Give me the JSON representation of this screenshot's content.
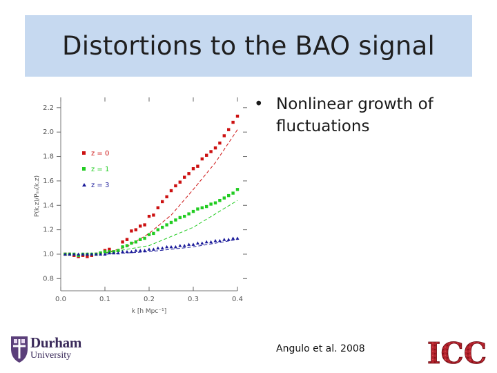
{
  "slide": {
    "title": "Distortions to the BAO signal",
    "bullets": [
      "Nonlinear growth of fluctuations"
    ],
    "bullet_symbol": "•",
    "citation": "Angulo et al. 2008"
  },
  "logos": {
    "durham": {
      "line1": "Durham",
      "line2": "University",
      "color": "#3a2a5a"
    },
    "icc": {
      "text": "ICC",
      "color": "#b0202a"
    }
  },
  "chart_data": {
    "type": "scatter",
    "xlabel": "k [h Mpc⁻¹]",
    "ylabel": "P(k,z)/Pₗᵢₙ(k,z)",
    "xlim": [
      0.0,
      0.4
    ],
    "ylim": [
      0.7,
      2.25
    ],
    "xticks": [
      "0.0",
      "0.1",
      "0.2",
      "0.3",
      "0.4"
    ],
    "yticks": [
      "0.8",
      "1.0",
      "1.2",
      "1.4",
      "1.6",
      "1.8",
      "2.0",
      "2.2"
    ],
    "legend": [
      {
        "label": "z = 0",
        "color": "#cc1111",
        "marker": "square"
      },
      {
        "label": "z = 1",
        "color": "#22cc22",
        "marker": "square"
      },
      {
        "label": "z = 3",
        "color": "#1a1a99",
        "marker": "triangle"
      }
    ],
    "series": [
      {
        "name": "z = 0",
        "color": "#cc1111",
        "x": [
          0.01,
          0.02,
          0.03,
          0.04,
          0.05,
          0.06,
          0.07,
          0.08,
          0.09,
          0.1,
          0.11,
          0.12,
          0.13,
          0.14,
          0.15,
          0.16,
          0.17,
          0.18,
          0.19,
          0.2,
          0.21,
          0.22,
          0.23,
          0.24,
          0.25,
          0.26,
          0.27,
          0.28,
          0.29,
          0.3,
          0.31,
          0.32,
          0.33,
          0.34,
          0.35,
          0.36,
          0.37,
          0.38,
          0.39,
          0.4
        ],
        "y": [
          1.0,
          1.0,
          0.99,
          0.98,
          0.99,
          0.98,
          0.99,
          1.0,
          1.01,
          1.03,
          1.04,
          1.02,
          1.03,
          1.1,
          1.12,
          1.19,
          1.2,
          1.23,
          1.24,
          1.31,
          1.32,
          1.38,
          1.43,
          1.47,
          1.52,
          1.56,
          1.59,
          1.63,
          1.66,
          1.7,
          1.72,
          1.78,
          1.81,
          1.84,
          1.87,
          1.91,
          1.97,
          2.02,
          2.08,
          2.13
        ],
        "dashed_model": {
          "x": [
            0.1,
            0.15,
            0.2,
            0.25,
            0.3,
            0.35,
            0.4
          ],
          "y": [
            1.01,
            1.06,
            1.17,
            1.32,
            1.53,
            1.75,
            2.02
          ]
        }
      },
      {
        "name": "z = 1",
        "color": "#22cc22",
        "x": [
          0.01,
          0.02,
          0.03,
          0.04,
          0.05,
          0.06,
          0.07,
          0.08,
          0.09,
          0.1,
          0.11,
          0.12,
          0.13,
          0.14,
          0.15,
          0.16,
          0.17,
          0.18,
          0.19,
          0.2,
          0.21,
          0.22,
          0.23,
          0.24,
          0.25,
          0.26,
          0.27,
          0.28,
          0.29,
          0.3,
          0.31,
          0.32,
          0.33,
          0.34,
          0.35,
          0.36,
          0.37,
          0.38,
          0.39,
          0.4
        ],
        "y": [
          1.0,
          1.0,
          1.0,
          0.99,
          1.0,
          1.0,
          1.0,
          1.0,
          1.01,
          1.02,
          1.02,
          1.02,
          1.03,
          1.06,
          1.07,
          1.09,
          1.1,
          1.12,
          1.13,
          1.16,
          1.17,
          1.2,
          1.22,
          1.24,
          1.26,
          1.28,
          1.3,
          1.31,
          1.33,
          1.35,
          1.37,
          1.38,
          1.39,
          1.41,
          1.42,
          1.44,
          1.46,
          1.48,
          1.5,
          1.53
        ],
        "dashed_model": {
          "x": [
            0.1,
            0.2,
            0.3,
            0.4
          ],
          "y": [
            1.01,
            1.07,
            1.22,
            1.44
          ]
        }
      },
      {
        "name": "z = 3",
        "color": "#1a1a99",
        "x": [
          0.01,
          0.02,
          0.03,
          0.04,
          0.05,
          0.06,
          0.07,
          0.08,
          0.09,
          0.1,
          0.11,
          0.12,
          0.13,
          0.14,
          0.15,
          0.16,
          0.17,
          0.18,
          0.19,
          0.2,
          0.21,
          0.22,
          0.23,
          0.24,
          0.25,
          0.26,
          0.27,
          0.28,
          0.29,
          0.3,
          0.31,
          0.32,
          0.33,
          0.34,
          0.35,
          0.36,
          0.37,
          0.38,
          0.39,
          0.4
        ],
        "y": [
          1.0,
          1.0,
          1.0,
          1.0,
          1.0,
          1.0,
          1.0,
          1.0,
          1.0,
          1.0,
          1.01,
          1.01,
          1.01,
          1.02,
          1.02,
          1.02,
          1.03,
          1.03,
          1.03,
          1.04,
          1.04,
          1.05,
          1.05,
          1.06,
          1.06,
          1.06,
          1.07,
          1.07,
          1.08,
          1.08,
          1.09,
          1.09,
          1.1,
          1.1,
          1.11,
          1.11,
          1.12,
          1.12,
          1.13,
          1.13
        ],
        "dashed_model": {
          "x": [
            0.1,
            0.2,
            0.3,
            0.4
          ],
          "y": [
            1.0,
            1.02,
            1.06,
            1.12
          ]
        }
      }
    ]
  }
}
